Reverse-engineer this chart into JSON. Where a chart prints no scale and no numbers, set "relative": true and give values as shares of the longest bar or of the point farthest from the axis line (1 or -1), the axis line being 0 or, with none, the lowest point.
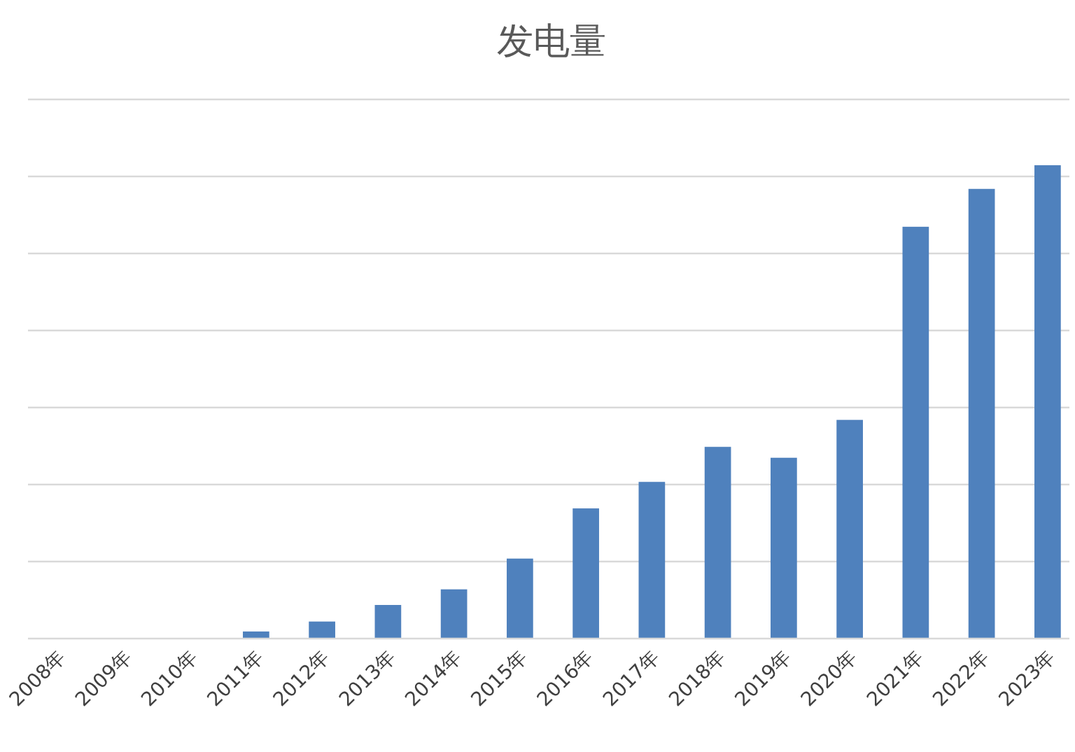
{
  "chart_data": {
    "type": "bar",
    "title": "发电量",
    "relative": true,
    "grid": "y",
    "categories": [
      "2008年",
      "2009年",
      "2010年",
      "2011年",
      "2012年",
      "2013年",
      "2014年",
      "2015年",
      "2016年",
      "2017年",
      "2018年",
      "2019年",
      "2020年",
      "2021年",
      "2022年",
      "2023年"
    ],
    "values": [
      0,
      0,
      0,
      0.015,
      0.036,
      0.071,
      0.104,
      0.169,
      0.275,
      0.331,
      0.405,
      0.382,
      0.462,
      0.87,
      0.95,
      1
    ],
    "color": "#4f81bd"
  }
}
